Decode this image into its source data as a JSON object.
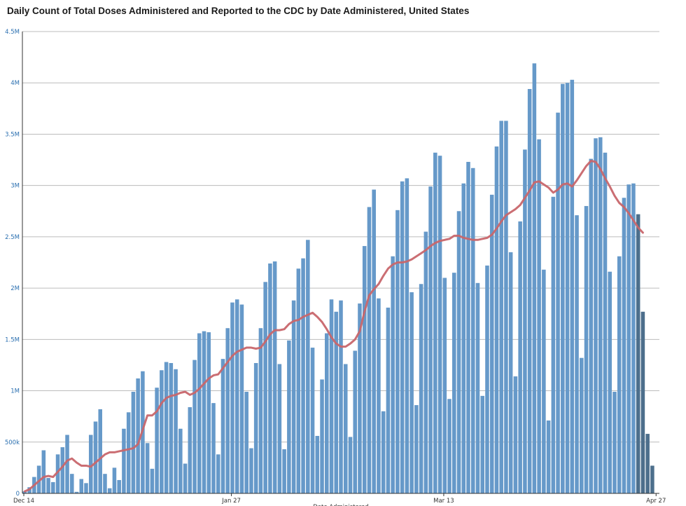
{
  "chart_data": {
    "type": "bar",
    "title": "Daily Count of Total Doses Administered and Reported to the CDC by Date Administered, United States",
    "xlabel": "Date Administered",
    "ylabel": "",
    "ylim": [
      0,
      4500000
    ],
    "y_ticks": [
      {
        "value": 0,
        "label": "0"
      },
      {
        "value": 500000,
        "label": "500k"
      },
      {
        "value": 1000000,
        "label": "1M"
      },
      {
        "value": 1500000,
        "label": "1.5M"
      },
      {
        "value": 2000000,
        "label": "2M"
      },
      {
        "value": 2500000,
        "label": "2.5M"
      },
      {
        "value": 3000000,
        "label": "3M"
      },
      {
        "value": 3500000,
        "label": "3.5M"
      },
      {
        "value": 4000000,
        "label": "4M"
      },
      {
        "value": 4500000,
        "label": "4.5M"
      }
    ],
    "x_ticks": [
      {
        "index": 0,
        "label": "Dec 14"
      },
      {
        "index": 44,
        "label": "Jan 27"
      },
      {
        "index": 89,
        "label": "Mar 13"
      },
      {
        "index": 134,
        "label": "Apr 27"
      }
    ],
    "start_date": "Dec 14",
    "grid": true,
    "colors": {
      "bars": "#6699c9",
      "bars_recent": "#4d6f8c",
      "line": "#c8666b",
      "grid": "#bcbcbc"
    },
    "series": [
      {
        "name": "",
        "type": "bar",
        "values": [
          20000,
          60000,
          160000,
          270000,
          420000,
          150000,
          110000,
          380000,
          450000,
          570000,
          190000,
          15000,
          140000,
          100000,
          570000,
          700000,
          820000,
          190000,
          50000,
          250000,
          130000,
          630000,
          790000,
          990000,
          1120000,
          1190000,
          490000,
          240000,
          1030000,
          1200000,
          1280000,
          1270000,
          1210000,
          630000,
          290000,
          840000,
          1300000,
          1560000,
          1580000,
          1570000,
          880000,
          380000,
          1310000,
          1610000,
          1860000,
          1890000,
          1840000,
          990000,
          440000,
          1270000,
          1610000,
          2060000,
          2240000,
          2260000,
          1260000,
          430000,
          1490000,
          1880000,
          2190000,
          2290000,
          2470000,
          1420000,
          560000,
          1110000,
          1560000,
          1890000,
          1770000,
          1880000,
          1260000,
          550000,
          1390000,
          1850000,
          2410000,
          2790000,
          2960000,
          1900000,
          800000,
          1810000,
          2310000,
          2760000,
          3040000,
          3070000,
          1960000,
          860000,
          2040000,
          2550000,
          2990000,
          3320000,
          3290000,
          2100000,
          920000,
          2150000,
          2750000,
          3020000,
          3230000,
          3170000,
          2050000,
          950000,
          2220000,
          2910000,
          3380000,
          3630000,
          3630000,
          2350000,
          1140000,
          2650000,
          3350000,
          3940000,
          4190000,
          3450000,
          2180000,
          710000,
          2890000,
          3710000,
          3990000,
          4000000,
          4030000,
          2710000,
          1320000,
          2800000,
          3260000,
          3460000,
          3470000,
          3320000,
          2160000,
          990000,
          2310000,
          2880000,
          3010000,
          3020000,
          2720000,
          1770000,
          580000,
          270000
        ]
      },
      {
        "name": "",
        "type": "line",
        "values": [
          20000,
          40000,
          80000,
          120000,
          160000,
          170000,
          160000,
          210000,
          260000,
          320000,
          340000,
          300000,
          270000,
          270000,
          260000,
          300000,
          340000,
          380000,
          400000,
          400000,
          410000,
          420000,
          430000,
          440000,
          480000,
          620000,
          760000,
          760000,
          800000,
          880000,
          930000,
          950000,
          960000,
          980000,
          990000,
          960000,
          980000,
          1020000,
          1070000,
          1120000,
          1150000,
          1160000,
          1220000,
          1280000,
          1340000,
          1380000,
          1400000,
          1420000,
          1420000,
          1410000,
          1420000,
          1480000,
          1550000,
          1590000,
          1590000,
          1600000,
          1650000,
          1680000,
          1690000,
          1720000,
          1740000,
          1760000,
          1720000,
          1670000,
          1600000,
          1520000,
          1460000,
          1430000,
          1430000,
          1460000,
          1500000,
          1580000,
          1770000,
          1930000,
          1990000,
          2040000,
          2120000,
          2190000,
          2230000,
          2250000,
          2250000,
          2260000,
          2280000,
          2310000,
          2340000,
          2370000,
          2410000,
          2440000,
          2460000,
          2470000,
          2480000,
          2510000,
          2510000,
          2490000,
          2480000,
          2470000,
          2470000,
          2480000,
          2490000,
          2520000,
          2580000,
          2650000,
          2710000,
          2740000,
          2770000,
          2810000,
          2880000,
          2950000,
          3030000,
          3040000,
          3010000,
          2980000,
          2930000,
          2960000,
          3010000,
          3020000,
          2990000,
          3050000,
          3120000,
          3190000,
          3240000,
          3230000,
          3160000,
          3070000,
          2990000,
          2900000,
          2830000,
          2790000,
          2730000,
          2660000,
          2590000,
          2540000
        ]
      }
    ]
  }
}
